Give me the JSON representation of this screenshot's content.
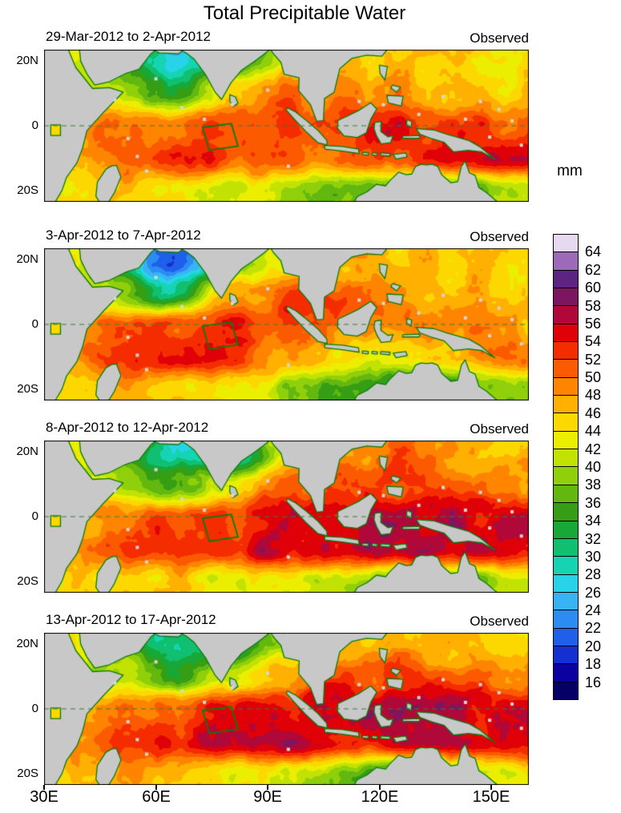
{
  "figure": {
    "title": "Total Precipitable Water"
  },
  "chart_data": {
    "type": "heatmap",
    "title": "Total Precipitable Water",
    "x_ticks": [
      "30E",
      "60E",
      "90E",
      "120E",
      "150E"
    ],
    "x_tick_lons": [
      30,
      60,
      90,
      120,
      150
    ],
    "y_ticks": [
      "20N",
      "0",
      "20S"
    ],
    "y_tick_lats": [
      20,
      0,
      -20
    ],
    "lon_range": [
      30,
      160
    ],
    "lat_range": [
      -23.5,
      23.5
    ],
    "colorbar": {
      "label": "mm",
      "ticks_top_to_bottom": [
        64,
        62,
        60,
        58,
        56,
        54,
        52,
        50,
        48,
        46,
        44,
        42,
        40,
        38,
        36,
        34,
        32,
        30,
        28,
        26,
        24,
        22,
        20,
        18,
        16
      ],
      "min": 16,
      "max": 64,
      "step": 2,
      "colors_low_to_high": [
        "#050065",
        "#0b00a0",
        "#1430d2",
        "#1f60ea",
        "#2d8cf2",
        "#38b4f4",
        "#28d2e8",
        "#14d4b4",
        "#10c070",
        "#18a838",
        "#359e14",
        "#62b80e",
        "#90d00a",
        "#c2e204",
        "#ecee00",
        "#fcd800",
        "#ffb000",
        "#ff8400",
        "#fc5a00",
        "#f42c00",
        "#e00008",
        "#b00838",
        "#7c1660",
        "#5e2482",
        "#9c6ab8",
        "#e6daf0"
      ]
    },
    "map_colors": {
      "land": "#c8c8c8",
      "coastline": "#0c7a0c",
      "analysis_box": "#0c7a0c",
      "equator_line": "#3a7a3a",
      "station_marker": "#d6d6d6",
      "panel_border": "#000000"
    },
    "analysis_box_lonlat": [
      [
        72.5,
        -0.5
      ],
      [
        80.2,
        0.7
      ],
      [
        82,
        -6.3
      ],
      [
        74.3,
        -7.6
      ]
    ],
    "station_markers_lonlat": [
      [
        49,
        8
      ],
      [
        52.5,
        -4
      ],
      [
        55,
        -9.5
      ],
      [
        57.5,
        -14
      ],
      [
        60,
        14.5
      ],
      [
        67,
        5.5
      ],
      [
        73,
        2
      ],
      [
        80.5,
        6.5
      ],
      [
        90,
        11
      ],
      [
        95.5,
        -12.5
      ],
      [
        114.5,
        7.5
      ],
      [
        121,
        6.5
      ],
      [
        130.5,
        3.5
      ],
      [
        137,
        9
      ],
      [
        143,
        2
      ],
      [
        147,
        7.5
      ],
      [
        149.5,
        -3.5
      ],
      [
        155.5,
        1.5
      ],
      [
        152,
        5
      ],
      [
        158,
        -6
      ]
    ],
    "grid_lons": [
      35,
      50,
      65,
      80,
      95,
      110,
      125,
      140,
      155
    ],
    "grid_lats": [
      20,
      10,
      0,
      -10,
      -20
    ],
    "panels": [
      {
        "title": "29-Mar-2012 to 2-Apr-2012",
        "annotation": "Observed",
        "values_mm": [
          [
            44,
            34,
            26,
            33,
            42,
            46,
            46,
            45,
            44
          ],
          [
            42,
            40,
            33,
            45,
            50,
            49,
            48,
            47,
            46
          ],
          [
            46,
            50,
            51,
            52,
            52,
            52,
            54,
            53,
            52
          ],
          [
            47,
            51,
            53,
            52,
            50,
            49,
            52,
            54,
            55
          ],
          [
            44,
            46,
            45,
            42,
            40,
            38,
            36,
            35,
            41
          ]
        ]
      },
      {
        "title": "3-Apr-2012 to 7-Apr-2012",
        "annotation": "Observed",
        "values_mm": [
          [
            45,
            30,
            19,
            34,
            44,
            47,
            46,
            46,
            45
          ],
          [
            43,
            40,
            30,
            46,
            51,
            50,
            48,
            46,
            45
          ],
          [
            47,
            51,
            52,
            53,
            52,
            51,
            50,
            49,
            47
          ],
          [
            48,
            52,
            54,
            53,
            50,
            46,
            42,
            46,
            50
          ],
          [
            45,
            47,
            46,
            44,
            40,
            34,
            30,
            33,
            38
          ]
        ]
      },
      {
        "title": "8-Apr-2012 to 12-Apr-2012",
        "annotation": "Observed",
        "values_mm": [
          [
            44,
            38,
            28,
            26,
            42,
            48,
            50,
            48,
            47
          ],
          [
            43,
            42,
            36,
            44,
            50,
            52,
            52,
            50,
            49
          ],
          [
            46,
            50,
            52,
            53,
            55,
            56,
            57,
            56,
            55
          ],
          [
            47,
            51,
            53,
            54,
            56,
            55,
            56,
            57,
            56
          ],
          [
            44,
            46,
            45,
            43,
            42,
            40,
            38,
            37,
            42
          ]
        ]
      },
      {
        "title": "13-Apr-2012 to 17-Apr-2012",
        "annotation": "Observed",
        "values_mm": [
          [
            43,
            36,
            30,
            33,
            40,
            46,
            48,
            47,
            45
          ],
          [
            42,
            40,
            34,
            42,
            48,
            52,
            52,
            50,
            48
          ],
          [
            46,
            50,
            52,
            55,
            56,
            57,
            56,
            56,
            55
          ],
          [
            48,
            52,
            54,
            56,
            57,
            56,
            55,
            56,
            56
          ],
          [
            45,
            47,
            46,
            44,
            42,
            38,
            34,
            36,
            42
          ]
        ]
      }
    ]
  }
}
